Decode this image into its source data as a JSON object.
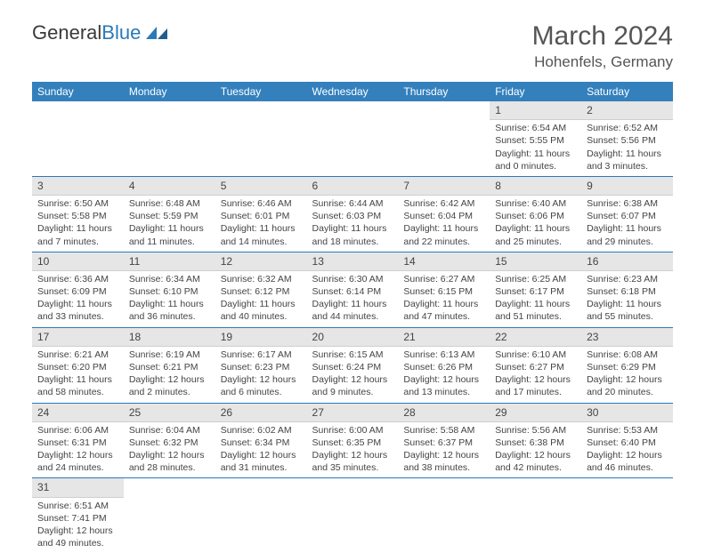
{
  "logo": {
    "text_a": "General",
    "text_b": "Blue"
  },
  "title": "March 2024",
  "location": "Hohenfels, Germany",
  "header_bg": "#3380bd",
  "header_text_color": "#ffffff",
  "day_headers": [
    "Sunday",
    "Monday",
    "Tuesday",
    "Wednesday",
    "Thursday",
    "Friday",
    "Saturday"
  ],
  "weeks": [
    [
      null,
      null,
      null,
      null,
      null,
      {
        "n": "1",
        "sunrise": "Sunrise: 6:54 AM",
        "sunset": "Sunset: 5:55 PM",
        "daylight": "Daylight: 11 hours and 0 minutes."
      },
      {
        "n": "2",
        "sunrise": "Sunrise: 6:52 AM",
        "sunset": "Sunset: 5:56 PM",
        "daylight": "Daylight: 11 hours and 3 minutes."
      }
    ],
    [
      {
        "n": "3",
        "sunrise": "Sunrise: 6:50 AM",
        "sunset": "Sunset: 5:58 PM",
        "daylight": "Daylight: 11 hours and 7 minutes."
      },
      {
        "n": "4",
        "sunrise": "Sunrise: 6:48 AM",
        "sunset": "Sunset: 5:59 PM",
        "daylight": "Daylight: 11 hours and 11 minutes."
      },
      {
        "n": "5",
        "sunrise": "Sunrise: 6:46 AM",
        "sunset": "Sunset: 6:01 PM",
        "daylight": "Daylight: 11 hours and 14 minutes."
      },
      {
        "n": "6",
        "sunrise": "Sunrise: 6:44 AM",
        "sunset": "Sunset: 6:03 PM",
        "daylight": "Daylight: 11 hours and 18 minutes."
      },
      {
        "n": "7",
        "sunrise": "Sunrise: 6:42 AM",
        "sunset": "Sunset: 6:04 PM",
        "daylight": "Daylight: 11 hours and 22 minutes."
      },
      {
        "n": "8",
        "sunrise": "Sunrise: 6:40 AM",
        "sunset": "Sunset: 6:06 PM",
        "daylight": "Daylight: 11 hours and 25 minutes."
      },
      {
        "n": "9",
        "sunrise": "Sunrise: 6:38 AM",
        "sunset": "Sunset: 6:07 PM",
        "daylight": "Daylight: 11 hours and 29 minutes."
      }
    ],
    [
      {
        "n": "10",
        "sunrise": "Sunrise: 6:36 AM",
        "sunset": "Sunset: 6:09 PM",
        "daylight": "Daylight: 11 hours and 33 minutes."
      },
      {
        "n": "11",
        "sunrise": "Sunrise: 6:34 AM",
        "sunset": "Sunset: 6:10 PM",
        "daylight": "Daylight: 11 hours and 36 minutes."
      },
      {
        "n": "12",
        "sunrise": "Sunrise: 6:32 AM",
        "sunset": "Sunset: 6:12 PM",
        "daylight": "Daylight: 11 hours and 40 minutes."
      },
      {
        "n": "13",
        "sunrise": "Sunrise: 6:30 AM",
        "sunset": "Sunset: 6:14 PM",
        "daylight": "Daylight: 11 hours and 44 minutes."
      },
      {
        "n": "14",
        "sunrise": "Sunrise: 6:27 AM",
        "sunset": "Sunset: 6:15 PM",
        "daylight": "Daylight: 11 hours and 47 minutes."
      },
      {
        "n": "15",
        "sunrise": "Sunrise: 6:25 AM",
        "sunset": "Sunset: 6:17 PM",
        "daylight": "Daylight: 11 hours and 51 minutes."
      },
      {
        "n": "16",
        "sunrise": "Sunrise: 6:23 AM",
        "sunset": "Sunset: 6:18 PM",
        "daylight": "Daylight: 11 hours and 55 minutes."
      }
    ],
    [
      {
        "n": "17",
        "sunrise": "Sunrise: 6:21 AM",
        "sunset": "Sunset: 6:20 PM",
        "daylight": "Daylight: 11 hours and 58 minutes."
      },
      {
        "n": "18",
        "sunrise": "Sunrise: 6:19 AM",
        "sunset": "Sunset: 6:21 PM",
        "daylight": "Daylight: 12 hours and 2 minutes."
      },
      {
        "n": "19",
        "sunrise": "Sunrise: 6:17 AM",
        "sunset": "Sunset: 6:23 PM",
        "daylight": "Daylight: 12 hours and 6 minutes."
      },
      {
        "n": "20",
        "sunrise": "Sunrise: 6:15 AM",
        "sunset": "Sunset: 6:24 PM",
        "daylight": "Daylight: 12 hours and 9 minutes."
      },
      {
        "n": "21",
        "sunrise": "Sunrise: 6:13 AM",
        "sunset": "Sunset: 6:26 PM",
        "daylight": "Daylight: 12 hours and 13 minutes."
      },
      {
        "n": "22",
        "sunrise": "Sunrise: 6:10 AM",
        "sunset": "Sunset: 6:27 PM",
        "daylight": "Daylight: 12 hours and 17 minutes."
      },
      {
        "n": "23",
        "sunrise": "Sunrise: 6:08 AM",
        "sunset": "Sunset: 6:29 PM",
        "daylight": "Daylight: 12 hours and 20 minutes."
      }
    ],
    [
      {
        "n": "24",
        "sunrise": "Sunrise: 6:06 AM",
        "sunset": "Sunset: 6:31 PM",
        "daylight": "Daylight: 12 hours and 24 minutes."
      },
      {
        "n": "25",
        "sunrise": "Sunrise: 6:04 AM",
        "sunset": "Sunset: 6:32 PM",
        "daylight": "Daylight: 12 hours and 28 minutes."
      },
      {
        "n": "26",
        "sunrise": "Sunrise: 6:02 AM",
        "sunset": "Sunset: 6:34 PM",
        "daylight": "Daylight: 12 hours and 31 minutes."
      },
      {
        "n": "27",
        "sunrise": "Sunrise: 6:00 AM",
        "sunset": "Sunset: 6:35 PM",
        "daylight": "Daylight: 12 hours and 35 minutes."
      },
      {
        "n": "28",
        "sunrise": "Sunrise: 5:58 AM",
        "sunset": "Sunset: 6:37 PM",
        "daylight": "Daylight: 12 hours and 38 minutes."
      },
      {
        "n": "29",
        "sunrise": "Sunrise: 5:56 AM",
        "sunset": "Sunset: 6:38 PM",
        "daylight": "Daylight: 12 hours and 42 minutes."
      },
      {
        "n": "30",
        "sunrise": "Sunrise: 5:53 AM",
        "sunset": "Sunset: 6:40 PM",
        "daylight": "Daylight: 12 hours and 46 minutes."
      }
    ],
    [
      {
        "n": "31",
        "sunrise": "Sunrise: 6:51 AM",
        "sunset": "Sunset: 7:41 PM",
        "daylight": "Daylight: 12 hours and 49 minutes."
      },
      null,
      null,
      null,
      null,
      null,
      null
    ]
  ]
}
